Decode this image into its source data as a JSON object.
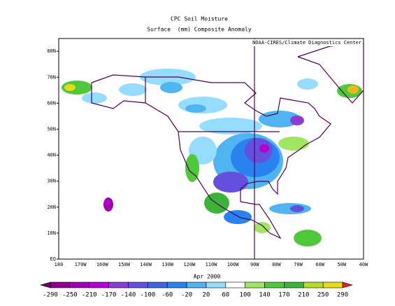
{
  "header": {
    "title": "CPC Soil Moisture",
    "subtitle": "Surface  (mm) Composite Anomaly",
    "credit": "NOAA-CIRES/Climate Diagnostics Center"
  },
  "map": {
    "lat_labels": [
      "80N",
      "70N",
      "60N",
      "50N",
      "40N",
      "30N",
      "20N",
      "10N",
      "EQ"
    ],
    "lon_labels": [
      "180",
      "170W",
      "160W",
      "150W",
      "140W",
      "130W",
      "120W",
      "110W",
      "100W",
      "90W",
      "80W",
      "70W",
      "60W",
      "50W",
      "40W"
    ],
    "date": "Apr 2000"
  },
  "colorbar": {
    "labels": [
      -290,
      -250,
      -210,
      -170,
      -140,
      -100,
      -60,
      -20,
      20,
      60,
      100,
      140,
      170,
      210,
      250,
      290
    ],
    "colors": [
      "#6e0070",
      "#8c008c",
      "#a000b4",
      "#b400d2",
      "#8c3cd2",
      "#6450dc",
      "#3c64e6",
      "#2882f0",
      "#50b4f0",
      "#96dcff",
      "#ffffff",
      "#a0e664",
      "#50c83c",
      "#3cb43c",
      "#b4dc28",
      "#e6dc14",
      "#f0b41e",
      "#e61e1e"
    ]
  }
}
